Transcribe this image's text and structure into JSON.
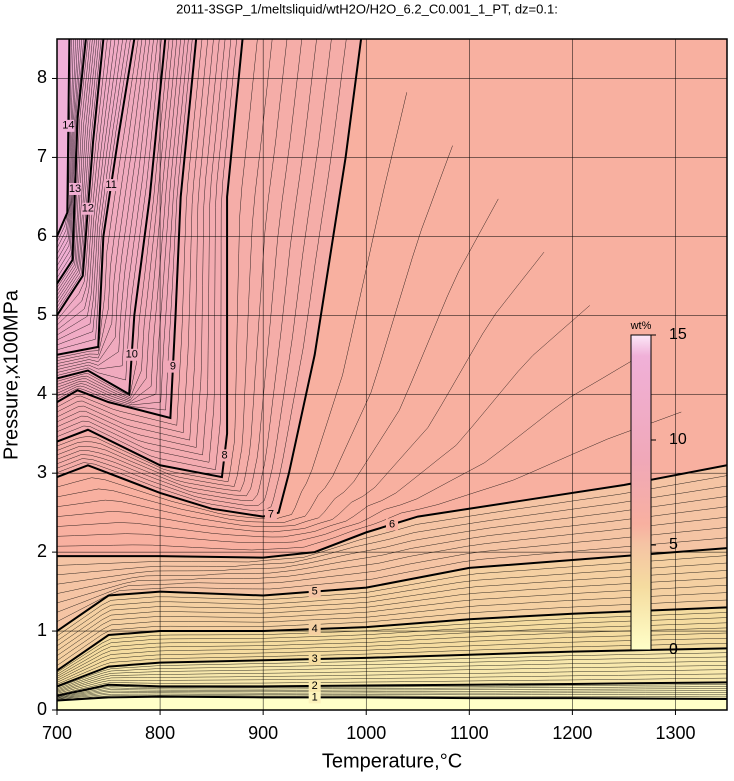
{
  "chart_data": {
    "type": "contour",
    "title": "2011-3SGP_1/meltsliquid/wtH2O/H2O_6.2_C0.001_1_PT, dz=0.1:",
    "x_label": "Temperature,°C",
    "y_label": "Pressure,x100MPa",
    "xlim": [
      700,
      1350
    ],
    "ylim": [
      0,
      8.5
    ],
    "xticks": [
      700,
      800,
      900,
      1000,
      1100,
      1200,
      1300
    ],
    "yticks": [
      0,
      1,
      2,
      3,
      4,
      5,
      6,
      7,
      8
    ],
    "grid": true,
    "colorbar": {
      "label": "wt%",
      "lim": [
        0,
        15
      ],
      "ticks": [
        0,
        5,
        10,
        15
      ],
      "colormap": [
        {
          "value": 0,
          "color": "#ffffc8"
        },
        {
          "value": 3,
          "color": "#f5dca0"
        },
        {
          "value": 5,
          "color": "#f5c4a4"
        },
        {
          "value": 6,
          "color": "#f8b0a0"
        },
        {
          "value": 9,
          "color": "#f0a8b8"
        },
        {
          "value": 14,
          "color": "#f0b0d8"
        },
        {
          "value": 15,
          "color": "#fce8f8"
        }
      ]
    },
    "contours": [
      {
        "level": 1,
        "x": [
          700,
          750,
          800,
          900,
          1000,
          1100,
          1200,
          1350
        ],
        "y": [
          0.12,
          0.16,
          0.17,
          0.16,
          0.16,
          0.15,
          0.15,
          0.14
        ]
      },
      {
        "level": 2,
        "x": [
          700,
          750,
          800,
          900,
          1000,
          1100,
          1200,
          1350
        ],
        "y": [
          0.18,
          0.32,
          0.3,
          0.3,
          0.31,
          0.32,
          0.33,
          0.35
        ]
      },
      {
        "level": 3,
        "x": [
          700,
          750,
          800,
          900,
          1000,
          1100,
          1200,
          1350
        ],
        "y": [
          0.3,
          0.55,
          0.6,
          0.63,
          0.66,
          0.7,
          0.74,
          0.78
        ]
      },
      {
        "level": 4,
        "x": [
          700,
          750,
          800,
          900,
          1000,
          1100,
          1200,
          1350
        ],
        "y": [
          0.5,
          0.95,
          1.0,
          1.0,
          1.05,
          1.15,
          1.22,
          1.3
        ]
      },
      {
        "level": 5,
        "x": [
          700,
          750,
          800,
          900,
          1000,
          1100,
          1200,
          1350
        ],
        "y": [
          1.0,
          1.45,
          1.5,
          1.45,
          1.55,
          1.8,
          1.9,
          2.05
        ]
      },
      {
        "level": 6,
        "x": [
          700,
          800,
          900,
          950,
          1000,
          1050,
          1150,
          1250,
          1350
        ],
        "y": [
          1.95,
          1.95,
          1.93,
          2.0,
          2.25,
          2.45,
          2.65,
          2.85,
          3.1
        ]
      },
      {
        "level": 7,
        "x": [
          700,
          730,
          800,
          850,
          900,
          915,
          925,
          950,
          980,
          995
        ],
        "y": [
          2.95,
          3.1,
          2.75,
          2.55,
          2.45,
          2.5,
          3.0,
          4.5,
          7.0,
          8.5
        ]
      },
      {
        "level": 8,
        "x": [
          700,
          730,
          800,
          860,
          865,
          865,
          880
        ],
        "y": [
          3.4,
          3.55,
          3.1,
          2.95,
          3.5,
          6.5,
          8.5
        ]
      },
      {
        "level": 9,
        "x": [
          700,
          720,
          750,
          810,
          815,
          820,
          835
        ],
        "y": [
          3.9,
          4.05,
          3.9,
          3.7,
          5.0,
          6.5,
          8.5
        ]
      },
      {
        "level": 10,
        "x": [
          700,
          730,
          770,
          775,
          790,
          805
        ],
        "y": [
          4.2,
          4.3,
          4.0,
          5.0,
          6.5,
          8.5
        ]
      },
      {
        "level": 11,
        "x": [
          700,
          740,
          745,
          760,
          775
        ],
        "y": [
          4.5,
          4.6,
          6.0,
          7.3,
          8.5
        ]
      },
      {
        "level": 12,
        "x": [
          700,
          725,
          735,
          745
        ],
        "y": [
          5.0,
          5.5,
          7.2,
          8.5
        ]
      },
      {
        "level": 13,
        "x": [
          700,
          715,
          720,
          728
        ],
        "y": [
          5.4,
          5.7,
          7.5,
          8.5
        ]
      },
      {
        "level": 14,
        "x": [
          700,
          710,
          712
        ],
        "y": [
          6.0,
          6.3,
          8.5
        ]
      }
    ]
  }
}
